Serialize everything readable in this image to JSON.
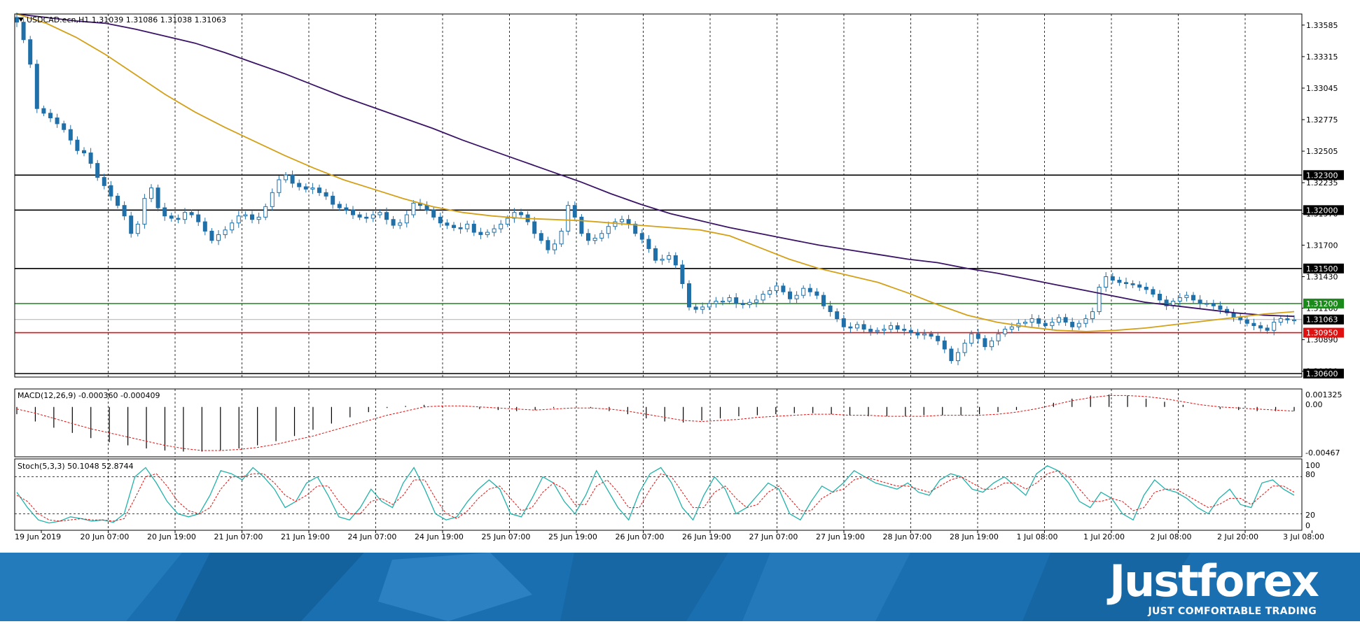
{
  "header": {
    "symbol_info": "USDCAD.ecn,H1  1.31039 1.31086 1.31038 1.31063"
  },
  "indicators": {
    "macd_label": "MACD(12,26,9) -0.000360 -0.000409",
    "macd_ticks": [
      "0.001325",
      "0.00",
      "-0.00467"
    ],
    "stoch_label": "Stoch(5,3,3) 50.1048 52.8744",
    "stoch_ticks": [
      "100",
      "80",
      "20",
      "0"
    ]
  },
  "brand": {
    "name": "Justforex",
    "tagline": "JUST COMFORTABLE TRADING"
  },
  "colors": {
    "candle": "#1f6fa8",
    "ma_fast": "#d4a017",
    "ma_slow": "#3a1466",
    "level": "#000000",
    "level_green": "#1a8a1a",
    "level_red": "#e01010",
    "banner": "#1a6fb0"
  },
  "chart_data": [
    {
      "type": "candlestick",
      "title": "USDCAD.ecn,H1",
      "ohlc_last": {
        "open": 1.31039,
        "high": 1.31086,
        "low": 1.31038,
        "close": 1.31063
      },
      "x_ticks": [
        "19 Jun 2019",
        "20 Jun 07:00",
        "20 Jun 19:00",
        "21 Jun 07:00",
        "21 Jun 19:00",
        "24 Jun 07:00",
        "24 Jun 19:00",
        "25 Jun 07:00",
        "25 Jun 19:00",
        "26 Jun 07:00",
        "26 Jun 19:00",
        "27 Jun 07:00",
        "27 Jun 19:00",
        "28 Jun 07:00",
        "28 Jun 19:00",
        "1 Jul 08:00",
        "1 Jul 20:00",
        "2 Jul 08:00",
        "2 Jul 20:00",
        "3 Jul 08:00"
      ],
      "y_ticks": [
        "1.33585",
        "1.33315",
        "1.33045",
        "1.32775",
        "1.32505",
        "1.32235",
        "1.31970",
        "1.31700",
        "1.31430",
        "1.31160",
        "1.30890",
        "1.30620"
      ],
      "ylim": [
        1.3057,
        1.3368
      ],
      "levels": [
        {
          "value": 1.323,
          "label": "1.32300",
          "color": "#000000"
        },
        {
          "value": 1.32,
          "label": "1.32000",
          "color": "#000000"
        },
        {
          "value": 1.315,
          "label": "1.31500",
          "color": "#000000"
        },
        {
          "value": 1.312,
          "label": "1.31200",
          "color": "#1a8a1a"
        },
        {
          "value": 1.3095,
          "label": "1.30950",
          "color": "#e01010"
        },
        {
          "value": 1.306,
          "label": "1.30600",
          "color": "#000000"
        }
      ],
      "current_price": {
        "value": 1.31063,
        "label": "1.31063"
      },
      "close_path": [
        1.3361,
        1.3346,
        1.3325,
        1.3287,
        1.3283,
        1.3279,
        1.3274,
        1.3269,
        1.326,
        1.3251,
        1.3249,
        1.324,
        1.3228,
        1.3221,
        1.3212,
        1.3204,
        1.3195,
        1.318,
        1.3188,
        1.321,
        1.3219,
        1.3202,
        1.3195,
        1.3193,
        1.3192,
        1.3198,
        1.3196,
        1.319,
        1.3182,
        1.3174,
        1.3179,
        1.3183,
        1.3189,
        1.3195,
        1.3196,
        1.3192,
        1.3194,
        1.3203,
        1.3215,
        1.3226,
        1.323,
        1.3223,
        1.322,
        1.3218,
        1.3219,
        1.3215,
        1.3212,
        1.3205,
        1.3202,
        1.32,
        1.3196,
        1.3194,
        1.3193,
        1.3196,
        1.3198,
        1.3192,
        1.3187,
        1.3189,
        1.3196,
        1.3206,
        1.3204,
        1.32,
        1.3194,
        1.3189,
        1.3187,
        1.3185,
        1.3184,
        1.3188,
        1.3181,
        1.3179,
        1.3181,
        1.3184,
        1.3188,
        1.3193,
        1.3198,
        1.3196,
        1.319,
        1.318,
        1.3174,
        1.3166,
        1.3171,
        1.3182,
        1.3204,
        1.3194,
        1.318,
        1.3174,
        1.3176,
        1.318,
        1.3186,
        1.319,
        1.3192,
        1.3188,
        1.318,
        1.3175,
        1.3167,
        1.3157,
        1.3158,
        1.3161,
        1.3153,
        1.3137,
        1.3117,
        1.3115,
        1.3117,
        1.312,
        1.3122,
        1.3122,
        1.3125,
        1.312,
        1.3119,
        1.3121,
        1.3123,
        1.3128,
        1.3131,
        1.3135,
        1.313,
        1.3124,
        1.3127,
        1.3133,
        1.313,
        1.3127,
        1.3118,
        1.3113,
        1.3107,
        1.31,
        1.3099,
        1.3102,
        1.3098,
        1.3096,
        1.3097,
        1.3098,
        1.3101,
        1.3098,
        1.3097,
        1.3095,
        1.3093,
        1.3094,
        1.3092,
        1.3088,
        1.3081,
        1.3071,
        1.3078,
        1.3086,
        1.3094,
        1.309,
        1.3083,
        1.3088,
        1.3094,
        1.3098,
        1.31,
        1.3103,
        1.3104,
        1.3107,
        1.3103,
        1.3101,
        1.3104,
        1.3108,
        1.3104,
        1.31,
        1.3103,
        1.3107,
        1.3113,
        1.3134,
        1.3143,
        1.314,
        1.3138,
        1.3137,
        1.3136,
        1.3134,
        1.3132,
        1.3128,
        1.3123,
        1.3118,
        1.3122,
        1.3125,
        1.3127,
        1.3123,
        1.312,
        1.312,
        1.3118,
        1.3115,
        1.3112,
        1.3108,
        1.3106,
        1.3103,
        1.3101,
        1.3099,
        1.3097,
        1.3104,
        1.3107,
        1.3106,
        1.3106
      ],
      "ma_slow_path": [
        1.3368,
        1.3365,
        1.3362,
        1.336,
        1.3355,
        1.3349,
        1.3343,
        1.3335,
        1.3326,
        1.3317,
        1.3307,
        1.3297,
        1.3288,
        1.3279,
        1.327,
        1.326,
        1.3251,
        1.3242,
        1.3233,
        1.3224,
        1.3214,
        1.3205,
        1.3197,
        1.3191,
        1.3185,
        1.318,
        1.3175,
        1.317,
        1.3166,
        1.3162,
        1.3158,
        1.3155,
        1.315,
        1.3146,
        1.3141,
        1.3136,
        1.3131,
        1.3126,
        1.3121,
        1.3118,
        1.3115,
        1.3112,
        1.311,
        1.3109
      ],
      "ma_fast_path": [
        1.3368,
        1.336,
        1.3348,
        1.3333,
        1.3316,
        1.3299,
        1.3284,
        1.3271,
        1.3259,
        1.3247,
        1.3236,
        1.3226,
        1.3218,
        1.321,
        1.3203,
        1.3198,
        1.3195,
        1.3193,
        1.3192,
        1.3191,
        1.3189,
        1.3187,
        1.3185,
        1.3183,
        1.3178,
        1.3168,
        1.3158,
        1.315,
        1.3144,
        1.3138,
        1.3129,
        1.3119,
        1.311,
        1.3104,
        1.31,
        1.3097,
        1.3096,
        1.3097,
        1.3099,
        1.3102,
        1.3105,
        1.3108,
        1.3111,
        1.3113
      ]
    },
    {
      "type": "bar",
      "title": "MACD(12,26,9)",
      "ylim": [
        -0.00467,
        0.0016
      ],
      "series": [
        {
          "name": "MACD",
          "values": [
            -0.0007,
            -0.0014,
            -0.002,
            -0.0025,
            -0.003,
            -0.0034,
            -0.0037,
            -0.004,
            -0.0042,
            -0.0043,
            -0.0043,
            -0.0042,
            -0.004,
            -0.0037,
            -0.0033,
            -0.0028,
            -0.0022,
            -0.0016,
            -0.001,
            -0.0005,
            -0.0001,
            0.0001,
            0.0002,
            0.0001,
            0.0,
            -0.0002,
            -0.0003,
            -0.0004,
            -0.0003,
            -0.0001,
            0.0,
            -0.0001,
            -0.0004,
            -0.0007,
            -0.0011,
            -0.0014,
            -0.0015,
            -0.0013,
            -0.0011,
            -0.0009,
            -0.0008,
            -0.0007,
            -0.0006,
            -0.0006,
            -0.0007,
            -0.0008,
            -0.0009,
            -0.0009,
            -0.0009,
            -0.0008,
            -0.0008,
            -0.0008,
            -0.0007,
            -0.0005,
            -0.0003,
            0.0,
            0.0004,
            0.0008,
            0.0011,
            0.0012,
            0.0011,
            0.0008,
            0.0005,
            0.0002,
            0.0,
            -0.0002,
            -0.0003,
            -0.0004,
            -0.0004,
            -0.0004
          ]
        },
        {
          "name": "Signal",
          "values": [
            -0.0002,
            -0.0006,
            -0.0011,
            -0.0016,
            -0.0021,
            -0.0025,
            -0.0029,
            -0.0033,
            -0.0037,
            -0.004,
            -0.0042,
            -0.0042,
            -0.0041,
            -0.0039,
            -0.0036,
            -0.0032,
            -0.0028,
            -0.0023,
            -0.0018,
            -0.0013,
            -0.0008,
            -0.0004,
            0.0,
            0.0001,
            0.0001,
            0.0,
            -0.0001,
            -0.0002,
            -0.0003,
            -0.0002,
            -0.0001,
            -0.0001,
            -0.0002,
            -0.0004,
            -0.0007,
            -0.001,
            -0.0013,
            -0.0014,
            -0.0013,
            -0.0012,
            -0.001,
            -0.0009,
            -0.0008,
            -0.0007,
            -0.0007,
            -0.0008,
            -0.0008,
            -0.0009,
            -0.0009,
            -0.0009,
            -0.0008,
            -0.0008,
            -0.0008,
            -0.0007,
            -0.0005,
            -0.0002,
            0.0002,
            0.0006,
            0.0009,
            0.0011,
            0.0011,
            0.001,
            0.0008,
            0.0005,
            0.0002,
            0.0,
            -0.0001,
            -0.0002,
            -0.0003,
            -0.0004
          ]
        }
      ]
    },
    {
      "type": "line",
      "title": "Stoch(5,3,3)",
      "ylim": [
        0,
        100
      ],
      "series": [
        {
          "name": "Main",
          "values": [
            55,
            30,
            10,
            5,
            8,
            15,
            12,
            8,
            10,
            6,
            20,
            80,
            95,
            70,
            40,
            20,
            15,
            20,
            50,
            90,
            85,
            75,
            95,
            80,
            60,
            30,
            40,
            70,
            80,
            50,
            15,
            10,
            30,
            60,
            40,
            30,
            70,
            95,
            60,
            20,
            10,
            15,
            40,
            60,
            75,
            60,
            20,
            15,
            45,
            80,
            70,
            40,
            20,
            50,
            90,
            60,
            30,
            10,
            55,
            85,
            95,
            70,
            30,
            10,
            50,
            80,
            60,
            20,
            30,
            50,
            70,
            60,
            20,
            10,
            40,
            65,
            55,
            70,
            90,
            80,
            70,
            65,
            60,
            70,
            55,
            50,
            75,
            85,
            80,
            60,
            55,
            70,
            80,
            65,
            50,
            85,
            98,
            90,
            70,
            40,
            30,
            55,
            45,
            20,
            10,
            50,
            75,
            60,
            55,
            45,
            30,
            20,
            45,
            60,
            35,
            30,
            70,
            75,
            60,
            50
          ]
        },
        {
          "name": "Signal",
          "values": [
            50,
            40,
            20,
            10,
            8,
            10,
            12,
            10,
            10,
            8,
            12,
            45,
            80,
            85,
            65,
            40,
            25,
            20,
            30,
            60,
            80,
            80,
            85,
            85,
            70,
            50,
            40,
            50,
            65,
            65,
            40,
            20,
            20,
            40,
            45,
            35,
            50,
            75,
            75,
            45,
            20,
            12,
            25,
            45,
            60,
            65,
            45,
            25,
            30,
            55,
            70,
            60,
            35,
            35,
            65,
            75,
            55,
            30,
            30,
            60,
            85,
            80,
            55,
            30,
            30,
            55,
            65,
            45,
            30,
            35,
            55,
            65,
            45,
            25,
            25,
            45,
            55,
            60,
            75,
            80,
            75,
            70,
            65,
            65,
            60,
            55,
            65,
            75,
            80,
            70,
            60,
            60,
            70,
            70,
            60,
            70,
            85,
            90,
            80,
            60,
            40,
            40,
            45,
            40,
            25,
            30,
            55,
            60,
            60,
            50,
            40,
            30,
            35,
            45,
            45,
            35,
            50,
            65,
            65,
            55
          ]
        }
      ],
      "levels": [
        80,
        20
      ]
    }
  ]
}
